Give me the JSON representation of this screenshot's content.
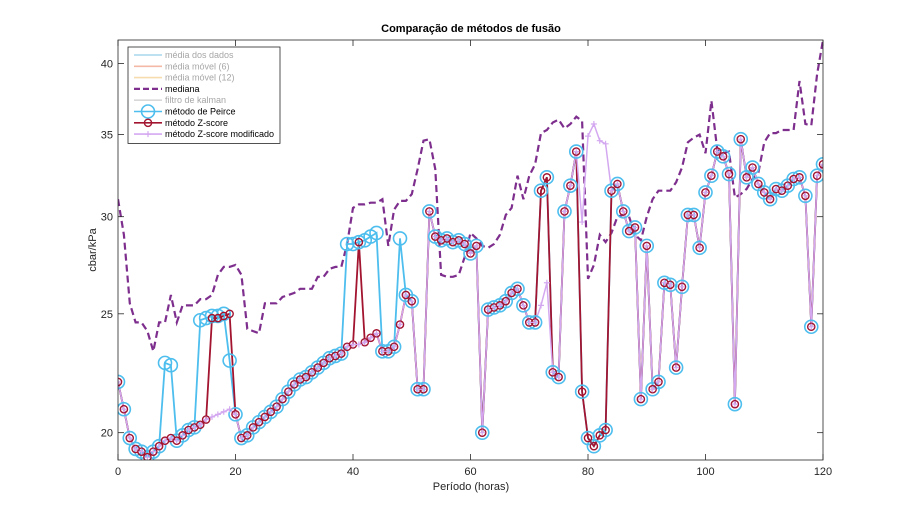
{
  "chart_data": {
    "type": "line",
    "title": "Comparação de métodos de fusão",
    "xlabel": "Período (horas)",
    "ylabel": "cbar/kPa",
    "xlim": [
      0,
      120
    ],
    "ylim": [
      19.0,
      41.8
    ],
    "yscale": "log",
    "xticks": [
      0,
      20,
      40,
      60,
      80,
      100,
      120
    ],
    "yticks": [
      20,
      25,
      30,
      35,
      40
    ],
    "legend_location": "top-left",
    "series": [
      {
        "name": "média dos dados",
        "color": "#A9D7EE",
        "style": "solid-hidden",
        "values": []
      },
      {
        "name": "média móvel (6)",
        "color": "#F3B8A6",
        "style": "solid-hidden",
        "values": []
      },
      {
        "name": "média móvel (12)",
        "color": "#F5DDB0",
        "style": "solid-hidden",
        "values": []
      },
      {
        "name": "mediana",
        "color": "#7E2F8E",
        "style": "dashed",
        "x": [
          0,
          1,
          2,
          3,
          4,
          5,
          6,
          7,
          8,
          9,
          10,
          11,
          12,
          13,
          14,
          15,
          16,
          17,
          18,
          19,
          20,
          21,
          22,
          23,
          24,
          25,
          26,
          27,
          28,
          29,
          30,
          31,
          32,
          33,
          34,
          35,
          36,
          37,
          38,
          39,
          40,
          41,
          42,
          43,
          44,
          45,
          46,
          47,
          48,
          49,
          50,
          51,
          52,
          53,
          54,
          55,
          56,
          57,
          58,
          59,
          60,
          61,
          62,
          63,
          64,
          65,
          66,
          67,
          68,
          69,
          70,
          71,
          72,
          73,
          74,
          75,
          76,
          77,
          78,
          79,
          80,
          81,
          82,
          83,
          84,
          85,
          86,
          87,
          88,
          89,
          90,
          91,
          92,
          93,
          94,
          95,
          96,
          97,
          98,
          99,
          100,
          101,
          102,
          103,
          104,
          105,
          106,
          107,
          108,
          109,
          110,
          111,
          112,
          113,
          114,
          115,
          116,
          117,
          118,
          119,
          120
        ],
        "values": [
          31.0,
          29.0,
          25.5,
          24.6,
          24.6,
          24.2,
          23.3,
          24.6,
          24.6,
          25.9,
          24.6,
          25.4,
          25.4,
          25.4,
          25.7,
          25.7,
          25.9,
          26.9,
          27.3,
          27.3,
          27.4,
          26.9,
          24.3,
          24.2,
          24.1,
          25.5,
          25.5,
          25.5,
          25.8,
          25.9,
          26.0,
          26.2,
          26.2,
          26.2,
          26.8,
          26.8,
          27.2,
          27.3,
          27.3,
          28.5,
          30.5,
          30.7,
          30.7,
          30.8,
          30.8,
          31.0,
          28.4,
          30.4,
          30.9,
          30.9,
          31.3,
          32.8,
          34.6,
          34.7,
          32.8,
          26.9,
          26.8,
          26.8,
          26.9,
          27.8,
          29.1,
          28.8,
          28.4,
          28.3,
          28.5,
          29.0,
          30.1,
          30.5,
          32.4,
          31.0,
          32.4,
          33.1,
          35.1,
          35.3,
          35.8,
          36.0,
          35.4,
          35.7,
          36.2,
          35.9,
          26.7,
          27.4,
          29.0,
          28.6,
          29.1,
          30.0,
          30.1,
          30.0,
          29.0,
          28.7,
          30.0,
          31.0,
          31.5,
          31.5,
          31.5,
          32.0,
          32.9,
          34.5,
          34.8,
          35.0,
          33.8,
          37.3,
          34.0,
          33.8,
          33.9,
          31.1,
          31.3,
          31.6,
          32.2,
          32.6,
          34.5,
          35.1,
          35.1,
          35.3,
          35.3,
          35.3,
          38.7,
          35.7,
          35.6,
          39.2,
          41.8
        ]
      },
      {
        "name": "filtro de kalman",
        "color": "#D8D8D8",
        "style": "solid-hidden",
        "values": []
      },
      {
        "name": "método de Peirce",
        "color": "#4DBEEE",
        "marker": "o-large",
        "x": [
          0,
          1,
          2,
          3,
          4,
          5,
          6,
          7,
          8,
          9,
          10,
          11,
          12,
          13,
          14,
          15,
          16,
          17,
          18,
          19,
          20,
          21,
          22,
          23,
          24,
          25,
          26,
          27,
          28,
          29,
          30,
          31,
          32,
          33,
          34,
          35,
          36,
          37,
          38,
          39,
          40,
          41,
          42,
          43,
          44,
          45,
          46,
          47,
          48,
          49,
          50,
          51,
          52,
          53,
          54,
          55,
          56,
          57,
          58,
          59,
          60,
          61,
          62,
          63,
          64,
          65,
          66,
          67,
          68,
          69,
          70,
          71,
          72,
          73,
          74,
          75,
          76,
          77,
          78,
          79,
          80,
          81,
          82,
          83,
          84,
          85,
          86,
          87,
          88,
          89,
          90,
          91,
          92,
          93,
          94,
          95,
          96,
          97,
          98,
          99,
          100,
          101,
          102,
          103,
          104,
          105,
          106,
          107,
          108,
          109,
          110,
          111,
          112,
          113,
          114,
          115,
          116,
          117,
          118,
          119,
          120
        ],
        "values": [
          22.0,
          20.9,
          19.8,
          19.4,
          19.3,
          19.1,
          19.3,
          19.5,
          22.8,
          22.7,
          19.7,
          19.9,
          20.1,
          20.2,
          24.7,
          24.8,
          24.9,
          24.9,
          25.0,
          22.9,
          20.7,
          19.8,
          19.9,
          20.2,
          20.4,
          20.6,
          20.8,
          21.0,
          21.3,
          21.6,
          21.9,
          22.1,
          22.2,
          22.4,
          22.6,
          22.8,
          23.0,
          23.1,
          23.2,
          28.5,
          28.5,
          28.6,
          28.7,
          28.9,
          29.1,
          23.3,
          23.3,
          23.5,
          28.8,
          25.9,
          25.6,
          21.7,
          21.7,
          30.3,
          28.9,
          28.7,
          28.8,
          28.6,
          28.7,
          28.5,
          28.0,
          28.4,
          20.0,
          25.2,
          25.3,
          25.4,
          25.6,
          26.0,
          26.2,
          25.4,
          24.6,
          24.6,
          31.5,
          32.3,
          22.4,
          22.2,
          30.3,
          31.8,
          33.9,
          21.6,
          19.8,
          19.5,
          19.9,
          20.1,
          31.5,
          31.9,
          30.3,
          29.2,
          29.4,
          21.3,
          28.4,
          21.7,
          22.0,
          26.5,
          26.4,
          22.6,
          26.3,
          30.1,
          30.1,
          28.3,
          31.4,
          32.4,
          33.9,
          33.6,
          32.5,
          21.1,
          34.7,
          32.3,
          32.9,
          31.9,
          31.4,
          31.0,
          31.6,
          31.5,
          31.8,
          32.2,
          32.3,
          31.2,
          24.4,
          32.4,
          33.1
        ]
      },
      {
        "name": "método Z-score",
        "color": "#A2142F",
        "marker": "o",
        "x": [
          0,
          1,
          2,
          3,
          4,
          5,
          6,
          7,
          8,
          9,
          10,
          11,
          12,
          13,
          14,
          15,
          16,
          17,
          18,
          19,
          20,
          21,
          22,
          23,
          24,
          25,
          26,
          27,
          28,
          29,
          30,
          31,
          32,
          33,
          34,
          35,
          36,
          37,
          38,
          39,
          40,
          41,
          42,
          43,
          44,
          45,
          46,
          47,
          48,
          49,
          50,
          51,
          52,
          53,
          54,
          55,
          56,
          57,
          58,
          59,
          60,
          61,
          62,
          63,
          64,
          65,
          66,
          67,
          68,
          69,
          70,
          71,
          72,
          73,
          74,
          75,
          76,
          77,
          78,
          79,
          80,
          81,
          82,
          83,
          84,
          85,
          86,
          87,
          88,
          89,
          90,
          91,
          92,
          93,
          94,
          95,
          96,
          97,
          98,
          99,
          100,
          101,
          102,
          103,
          104,
          105,
          106,
          107,
          108,
          109,
          110,
          111,
          112,
          113,
          114,
          115,
          116,
          117,
          118,
          119,
          120
        ],
        "values": [
          22.0,
          20.9,
          19.8,
          19.4,
          19.3,
          19.1,
          19.3,
          19.5,
          19.7,
          19.8,
          19.7,
          19.9,
          20.1,
          20.2,
          20.3,
          20.5,
          24.8,
          24.8,
          24.9,
          25.0,
          20.7,
          19.8,
          19.9,
          20.2,
          20.4,
          20.6,
          20.8,
          21.0,
          21.3,
          21.6,
          21.9,
          22.1,
          22.2,
          22.4,
          22.6,
          22.8,
          23.0,
          23.1,
          23.2,
          23.5,
          23.6,
          28.6,
          23.7,
          23.9,
          24.1,
          23.3,
          23.3,
          23.5,
          24.5,
          25.9,
          25.6,
          21.7,
          21.7,
          30.3,
          28.9,
          28.7,
          28.8,
          28.6,
          28.7,
          28.5,
          28.0,
          28.4,
          20.0,
          25.2,
          25.3,
          25.4,
          25.6,
          26.0,
          26.2,
          25.4,
          24.6,
          24.6,
          31.5,
          32.3,
          22.4,
          22.2,
          30.3,
          31.8,
          33.9,
          21.6,
          19.8,
          19.5,
          19.9,
          20.1,
          31.5,
          31.9,
          30.3,
          29.2,
          29.4,
          21.3,
          28.4,
          21.7,
          22.0,
          26.5,
          26.4,
          22.6,
          26.3,
          30.1,
          30.1,
          28.3,
          31.4,
          32.4,
          33.9,
          33.6,
          32.5,
          21.1,
          34.7,
          32.3,
          32.9,
          31.9,
          31.4,
          31.0,
          31.6,
          31.5,
          31.8,
          32.2,
          32.3,
          31.2,
          24.4,
          32.4,
          33.1
        ]
      },
      {
        "name": "método Z-score modificado",
        "color": "#D4A8F0",
        "marker": "+",
        "x": [
          0,
          1,
          2,
          3,
          4,
          5,
          6,
          7,
          8,
          9,
          10,
          11,
          12,
          13,
          14,
          15,
          16,
          17,
          18,
          19,
          20,
          21,
          22,
          23,
          24,
          25,
          26,
          27,
          28,
          29,
          30,
          31,
          32,
          33,
          34,
          35,
          36,
          37,
          38,
          39,
          40,
          41,
          42,
          43,
          44,
          45,
          46,
          47,
          48,
          49,
          50,
          51,
          52,
          53,
          54,
          55,
          56,
          57,
          58,
          59,
          60,
          61,
          62,
          63,
          64,
          65,
          66,
          67,
          68,
          69,
          70,
          71,
          72,
          73,
          74,
          75,
          76,
          77,
          78,
          79,
          80,
          81,
          82,
          83,
          84,
          85,
          86,
          87,
          88,
          89,
          90,
          91,
          92,
          93,
          94,
          95,
          96,
          97,
          98,
          99,
          100,
          101,
          102,
          103,
          104,
          105,
          106,
          107,
          108,
          109,
          110,
          111,
          112,
          113,
          114,
          115,
          116,
          117,
          118,
          119,
          120
        ],
        "values": [
          22.0,
          20.9,
          19.8,
          19.4,
          19.3,
          19.1,
          19.3,
          19.5,
          19.7,
          19.8,
          19.7,
          19.9,
          20.1,
          20.2,
          20.3,
          20.5,
          20.6,
          20.7,
          20.8,
          20.9,
          20.7,
          19.8,
          19.9,
          20.2,
          20.4,
          20.6,
          20.8,
          21.0,
          21.3,
          21.6,
          21.9,
          22.1,
          22.2,
          22.4,
          22.6,
          22.8,
          23.0,
          23.1,
          23.2,
          23.5,
          23.6,
          23.6,
          23.7,
          23.9,
          24.1,
          23.3,
          23.3,
          23.5,
          24.5,
          25.9,
          25.6,
          21.7,
          21.7,
          30.3,
          28.9,
          28.7,
          28.8,
          28.6,
          28.7,
          28.5,
          28.0,
          28.4,
          20.0,
          25.2,
          25.3,
          25.4,
          25.6,
          26.0,
          26.2,
          25.4,
          24.6,
          24.6,
          25.4,
          26.5,
          22.4,
          22.2,
          30.3,
          31.8,
          33.9,
          29.7,
          34.9,
          35.7,
          34.6,
          34.4,
          31.5,
          31.9,
          30.3,
          29.2,
          29.4,
          21.3,
          28.4,
          21.7,
          22.0,
          26.5,
          26.4,
          22.6,
          26.3,
          30.1,
          30.1,
          28.3,
          31.4,
          32.4,
          33.9,
          33.6,
          32.5,
          21.1,
          34.7,
          32.3,
          32.9,
          31.9,
          31.4,
          31.0,
          31.6,
          31.5,
          31.8,
          32.2,
          32.3,
          31.2,
          24.4,
          32.4,
          33.1
        ]
      }
    ]
  }
}
